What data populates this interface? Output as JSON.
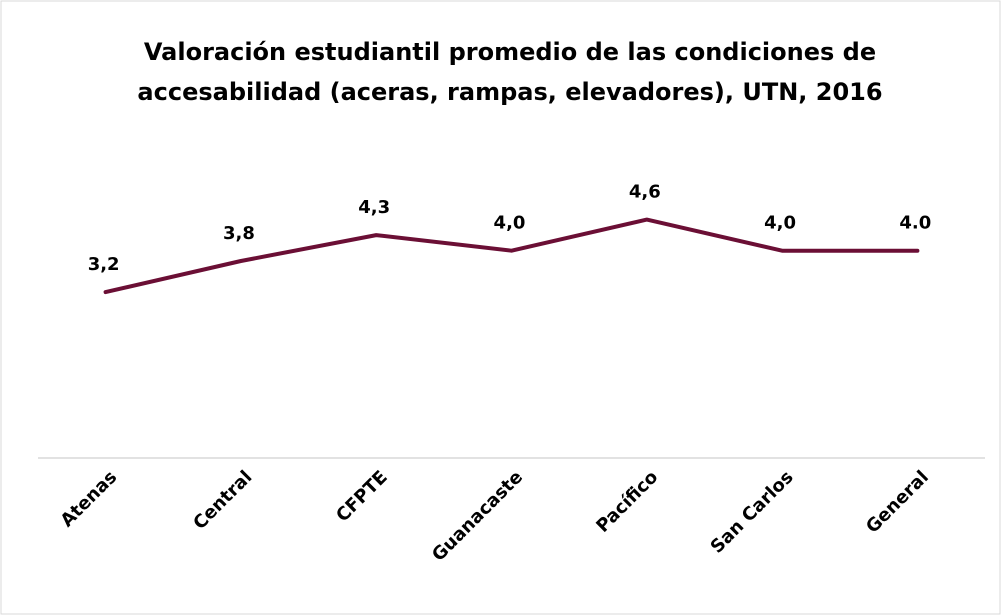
{
  "chart_data": {
    "type": "line",
    "title": [
      "Valoración estudiantil promedio de las condiciones de",
      "accesabilidad (aceras, rampas, elevadores), UTN, 2016"
    ],
    "categories": [
      "Atenas",
      "Central",
      "CFPTE",
      "Guanacaste",
      "Pacífico",
      "San Carlos",
      "General"
    ],
    "values": [
      3.2,
      3.8,
      4.3,
      4.0,
      4.6,
      4.0,
      4.0
    ],
    "value_labels": [
      "3,2",
      "3,8",
      "4,3",
      "4,0",
      "4,6",
      "4,0",
      "4.0"
    ],
    "color": "#6b0f35",
    "ylim": [
      0,
      6
    ]
  }
}
